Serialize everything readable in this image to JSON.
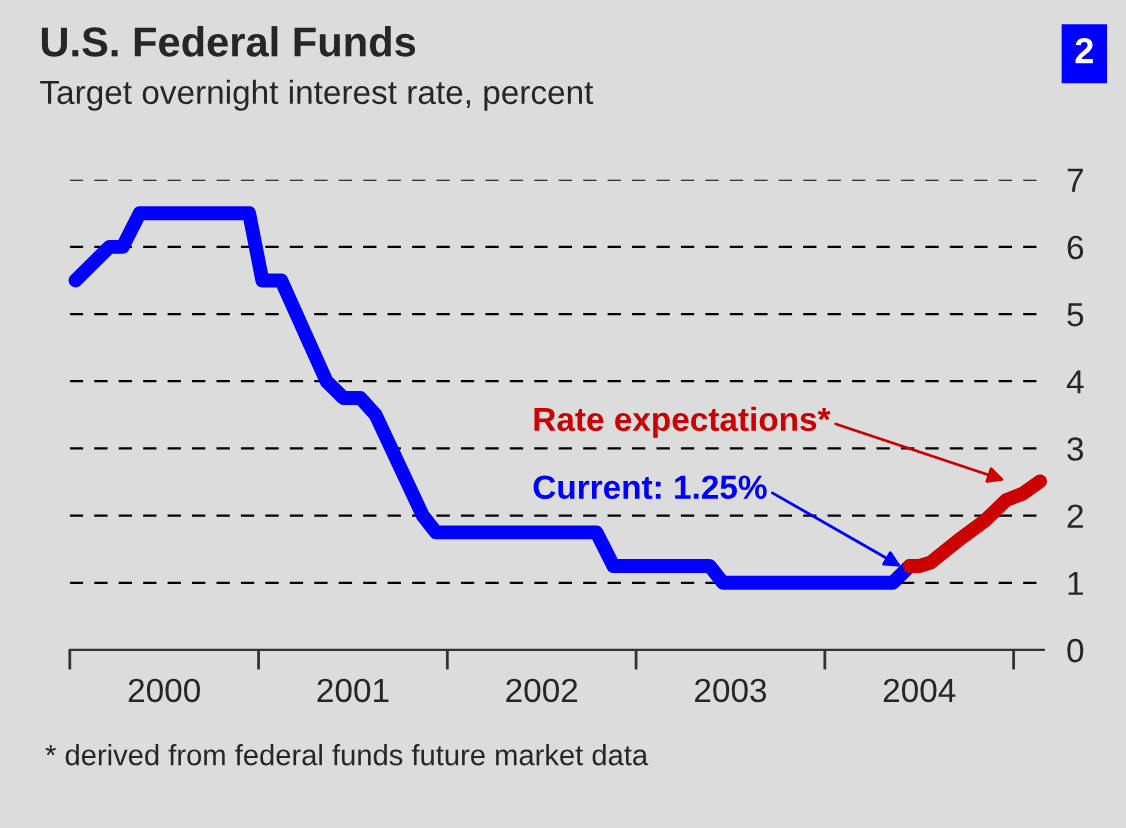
{
  "chart_data": {
    "type": "line",
    "title": "U.S. Federal Funds",
    "subtitle": "Target overnight interest rate, percent",
    "series": [
      {
        "color": "#0000ff",
        "x": [
          2000.03,
          2000.21,
          2000.28,
          2000.37,
          2000.95,
          2001.02,
          2001.12,
          2001.36,
          2001.45,
          2001.54,
          2001.62,
          2001.87,
          2001.94,
          2002.79,
          2002.88,
          2003.39,
          2003.46,
          2004.36,
          2004.45
        ],
        "values": [
          5.5,
          6.0,
          6.0,
          6.5,
          6.5,
          5.5,
          5.5,
          4.0,
          3.75,
          3.75,
          3.5,
          2.0,
          1.75,
          1.75,
          1.25,
          1.25,
          1.0,
          1.0,
          1.25
        ]
      },
      {
        "color": "#cc0000",
        "x": [
          2004.45,
          2004.5,
          2004.56,
          2004.71,
          2004.85,
          2004.96,
          2005.05,
          2005.14
        ],
        "values": [
          1.25,
          1.25,
          1.3,
          1.64,
          1.93,
          2.23,
          2.33,
          2.51
        ]
      }
    ],
    "xlim": [
      2000,
      2005.16
    ],
    "xticks": [
      {
        "value": 2000,
        "label": null
      },
      {
        "value": 2000.5,
        "label": "2000"
      },
      {
        "value": 2001,
        "label": null
      },
      {
        "value": 2001.5,
        "label": "2001"
      },
      {
        "value": 2002,
        "label": null
      },
      {
        "value": 2002.5,
        "label": "2002"
      },
      {
        "value": 2003,
        "label": null
      },
      {
        "value": 2003.5,
        "label": "2003"
      },
      {
        "value": 2004,
        "label": null
      },
      {
        "value": 2004.5,
        "label": "2004"
      },
      {
        "value": 2005,
        "label": null
      }
    ],
    "ylim": [
      0,
      7
    ],
    "yticks": [
      0,
      1,
      2,
      3,
      4,
      5,
      6,
      7
    ],
    "grid": "y",
    "legend": false,
    "line_style": "solid",
    "marker": "none",
    "annotations": [
      {
        "text": "Current: 1.25%",
        "x": 2004.43,
        "y": 1.2
      },
      {
        "text": "Rate expectations*",
        "x": 2004.98,
        "y": 2.5
      },
      "* derived from federal funds future market data",
      "2"
    ]
  }
}
